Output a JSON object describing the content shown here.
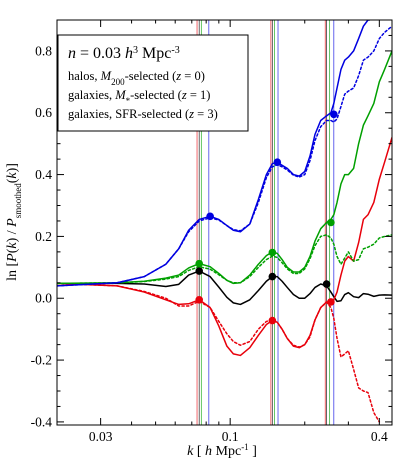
{
  "chart_data": {
    "type": "line",
    "xscale": "log",
    "xlim": [
      0.02,
      0.45
    ],
    "ylim": [
      -0.41,
      0.9
    ],
    "grid": false,
    "legend_position": "top-left",
    "xlabel": {
      "pre": "k",
      "mid": "[ h Mpc",
      "sup": "-1",
      "post": "]"
    },
    "ylabel": {
      "pre": "ln [P(k) / P",
      "sub": "smoothed",
      "post": "(k)]"
    },
    "x_ticks": [
      {
        "value": 0.03,
        "label": "0.03"
      },
      {
        "value": 0.1,
        "label": "0.1"
      },
      {
        "value": 0.4,
        "label": "0.4"
      }
    ],
    "y_ticks": [
      {
        "value": -0.4,
        "label": "-0.4"
      },
      {
        "value": -0.2,
        "label": "-0.2"
      },
      {
        "value": 0.0,
        "label": "0.0"
      },
      {
        "value": 0.2,
        "label": "0.2"
      },
      {
        "value": 0.4,
        "label": "0.4"
      },
      {
        "value": 0.6,
        "label": "0.6"
      },
      {
        "value": 0.8,
        "label": "0.8"
      }
    ],
    "legend": {
      "number_density": {
        "pre": "n = 0.03 ",
        "h": "h",
        "h_sup": "3",
        "mid": " Mpc",
        "mpc_sup": "-3"
      },
      "entries": [
        {
          "pre": "halos, ",
          "sym": "M",
          "sub": "200",
          "post": "-selected (",
          "z": "z",
          "zval": " = 0)"
        },
        {
          "pre": "galaxies, ",
          "sym": "M",
          "sub": "*",
          "post": "-selected (",
          "z": "z",
          "zval": " = 1)"
        },
        {
          "pre": "galaxies, SFR-selected (",
          "sym": "",
          "sub": "",
          "post": "",
          "z": "z",
          "zval": " = 3)"
        }
      ]
    },
    "colors": {
      "black": "#000000",
      "red": "#e8000b",
      "green": "#00a000",
      "blue": "#0000e0"
    },
    "series": [
      {
        "color": "black",
        "dash": "solid",
        "x": [
          0.02,
          0.035,
          0.045,
          0.055,
          0.062,
          0.068,
          0.075,
          0.083,
          0.09,
          0.097,
          0.103,
          0.11,
          0.12,
          0.13,
          0.14,
          0.148,
          0.155,
          0.162,
          0.17,
          0.18,
          0.19,
          0.2,
          0.21,
          0.22,
          0.232,
          0.245,
          0.255,
          0.262,
          0.27,
          0.28,
          0.29,
          0.3,
          0.315,
          0.33,
          0.345,
          0.36,
          0.38,
          0.4,
          0.42,
          0.45
        ],
        "y": [
          0.048,
          0.048,
          0.046,
          0.038,
          0.045,
          0.075,
          0.088,
          0.07,
          0.036,
          0.003,
          -0.015,
          -0.02,
          -0.005,
          0.025,
          0.055,
          0.07,
          0.07,
          0.055,
          0.035,
          0.012,
          0.0,
          0.0,
          0.015,
          0.035,
          0.046,
          0.04,
          0.02,
          0.005,
          -0.01,
          -0.008,
          0.012,
          0.018,
          0.005,
          0.002,
          0.015,
          0.013,
          0.006,
          0.01,
          0.011,
          0.01
        ]
      },
      {
        "color": "red",
        "dash": "solid",
        "x": [
          0.02,
          0.035,
          0.045,
          0.055,
          0.062,
          0.068,
          0.075,
          0.083,
          0.09,
          0.097,
          0.103,
          0.11,
          0.12,
          0.13,
          0.14,
          0.148,
          0.155,
          0.162,
          0.17,
          0.18,
          0.19,
          0.2,
          0.21,
          0.22,
          0.232,
          0.245,
          0.255,
          0.262,
          0.27,
          0.28,
          0.29,
          0.3,
          0.315,
          0.33,
          0.345,
          0.36,
          0.38,
          0.4,
          0.42,
          0.45
        ],
        "y": [
          0.048,
          0.04,
          0.02,
          -0.005,
          -0.02,
          -0.018,
          -0.005,
          -0.03,
          -0.09,
          -0.155,
          -0.18,
          -0.185,
          -0.16,
          -0.12,
          -0.085,
          -0.072,
          -0.078,
          -0.1,
          -0.13,
          -0.155,
          -0.16,
          -0.15,
          -0.12,
          -0.07,
          -0.03,
          -0.012,
          -0.01,
          -0.005,
          0.02,
          0.075,
          0.12,
          0.135,
          0.12,
          0.18,
          0.255,
          0.27,
          0.31,
          0.385,
          0.44,
          0.52
        ]
      },
      {
        "color": "red",
        "dash": "dotted",
        "x": [
          0.02,
          0.035,
          0.045,
          0.055,
          0.062,
          0.068,
          0.075,
          0.083,
          0.09,
          0.097,
          0.103,
          0.11,
          0.12,
          0.13,
          0.14,
          0.148,
          0.155,
          0.162,
          0.17,
          0.18,
          0.19,
          0.2,
          0.21,
          0.22,
          0.232,
          0.245,
          0.255,
          0.262,
          0.27,
          0.28,
          0.29,
          0.3,
          0.315,
          0.33,
          0.345,
          0.36,
          0.38,
          0.4
        ],
        "y": [
          0.048,
          0.04,
          0.022,
          0.0,
          -0.025,
          -0.025,
          -0.01,
          -0.03,
          -0.075,
          -0.115,
          -0.14,
          -0.152,
          -0.14,
          -0.1,
          -0.075,
          -0.07,
          -0.078,
          -0.1,
          -0.13,
          -0.152,
          -0.158,
          -0.15,
          -0.125,
          -0.07,
          -0.03,
          -0.013,
          -0.03,
          -0.065,
          -0.13,
          -0.19,
          -0.18,
          -0.17,
          -0.23,
          -0.29,
          -0.3,
          -0.305,
          -0.37,
          -0.4
        ]
      },
      {
        "color": "green",
        "dash": "solid",
        "x": [
          0.02,
          0.035,
          0.045,
          0.055,
          0.062,
          0.068,
          0.075,
          0.083,
          0.09,
          0.097,
          0.103,
          0.11,
          0.12,
          0.13,
          0.14,
          0.148,
          0.155,
          0.162,
          0.17,
          0.18,
          0.19,
          0.2,
          0.21,
          0.22,
          0.232,
          0.245,
          0.255,
          0.262,
          0.27,
          0.28,
          0.29,
          0.3,
          0.315,
          0.33,
          0.345,
          0.36,
          0.38,
          0.4,
          0.42,
          0.45
        ],
        "y": [
          0.048,
          0.05,
          0.055,
          0.065,
          0.075,
          0.098,
          0.112,
          0.102,
          0.08,
          0.058,
          0.048,
          0.05,
          0.075,
          0.11,
          0.138,
          0.15,
          0.145,
          0.125,
          0.1,
          0.085,
          0.085,
          0.1,
          0.135,
          0.185,
          0.225,
          0.245,
          0.255,
          0.27,
          0.31,
          0.37,
          0.4,
          0.4,
          0.42,
          0.5,
          0.56,
          0.59,
          0.63,
          0.7,
          0.74,
          0.8
        ]
      },
      {
        "color": "green",
        "dash": "dotted",
        "x": [
          0.02,
          0.035,
          0.045,
          0.055,
          0.062,
          0.068,
          0.075,
          0.083,
          0.09,
          0.097,
          0.103,
          0.11,
          0.12,
          0.13,
          0.14,
          0.148,
          0.155,
          0.162,
          0.17,
          0.18,
          0.19,
          0.2,
          0.21,
          0.22,
          0.232,
          0.245,
          0.255,
          0.262,
          0.27,
          0.28,
          0.29,
          0.3,
          0.315,
          0.33,
          0.345,
          0.36,
          0.38,
          0.4,
          0.42,
          0.45
        ],
        "y": [
          0.048,
          0.05,
          0.054,
          0.062,
          0.07,
          0.09,
          0.102,
          0.094,
          0.076,
          0.058,
          0.05,
          0.05,
          0.07,
          0.1,
          0.125,
          0.136,
          0.132,
          0.115,
          0.095,
          0.08,
          0.08,
          0.095,
          0.128,
          0.17,
          0.2,
          0.205,
          0.195,
          0.175,
          0.135,
          0.11,
          0.13,
          0.15,
          0.12,
          0.125,
          0.16,
          0.165,
          0.175,
          0.195,
          0.2,
          0.205
        ]
      },
      {
        "color": "blue",
        "dash": "solid",
        "x": [
          0.02,
          0.035,
          0.045,
          0.055,
          0.062,
          0.068,
          0.075,
          0.083,
          0.09,
          0.097,
          0.103,
          0.11,
          0.12,
          0.13,
          0.14,
          0.148,
          0.155,
          0.162,
          0.17,
          0.18,
          0.19,
          0.2,
          0.21,
          0.22,
          0.232,
          0.245,
          0.255,
          0.262,
          0.27,
          0.28,
          0.29,
          0.3,
          0.315,
          0.33,
          0.345,
          0.36,
          0.365
        ],
        "y": [
          0.04,
          0.05,
          0.07,
          0.11,
          0.16,
          0.22,
          0.255,
          0.265,
          0.255,
          0.235,
          0.22,
          0.215,
          0.24,
          0.32,
          0.4,
          0.435,
          0.44,
          0.43,
          0.42,
          0.4,
          0.395,
          0.41,
          0.46,
          0.53,
          0.575,
          0.59,
          0.6,
          0.63,
          0.68,
          0.74,
          0.77,
          0.78,
          0.8,
          0.84,
          0.88,
          0.9,
          0.9
        ]
      },
      {
        "color": "blue",
        "dash": "dotted",
        "x": [
          0.02,
          0.035,
          0.045,
          0.055,
          0.062,
          0.068,
          0.075,
          0.083,
          0.09,
          0.097,
          0.103,
          0.11,
          0.12,
          0.13,
          0.14,
          0.148,
          0.155,
          0.162,
          0.17,
          0.18,
          0.19,
          0.2,
          0.21,
          0.22,
          0.232,
          0.245,
          0.255,
          0.262,
          0.27,
          0.28,
          0.29,
          0.3,
          0.315,
          0.33,
          0.345,
          0.36,
          0.38,
          0.4,
          0.42,
          0.45
        ],
        "y": [
          0.04,
          0.05,
          0.07,
          0.11,
          0.16,
          0.215,
          0.25,
          0.26,
          0.253,
          0.235,
          0.222,
          0.218,
          0.24,
          0.31,
          0.39,
          0.425,
          0.432,
          0.425,
          0.415,
          0.398,
          0.392,
          0.4,
          0.445,
          0.51,
          0.555,
          0.575,
          0.575,
          0.57,
          0.58,
          0.62,
          0.66,
          0.67,
          0.68,
          0.72,
          0.77,
          0.78,
          0.8,
          0.84,
          0.86,
          0.88
        ]
      }
    ],
    "markers": [
      {
        "color": "black",
        "x": 0.075,
        "y": 0.088
      },
      {
        "color": "black",
        "x": 0.148,
        "y": 0.07
      },
      {
        "color": "black",
        "x": 0.245,
        "y": 0.046
      },
      {
        "color": "red",
        "x": 0.075,
        "y": -0.005
      },
      {
        "color": "red",
        "x": 0.148,
        "y": -0.072
      },
      {
        "color": "red",
        "x": 0.255,
        "y": -0.012
      },
      {
        "color": "green",
        "x": 0.075,
        "y": 0.112
      },
      {
        "color": "green",
        "x": 0.148,
        "y": 0.148
      },
      {
        "color": "green",
        "x": 0.255,
        "y": 0.245
      },
      {
        "color": "blue",
        "x": 0.083,
        "y": 0.265
      },
      {
        "color": "blue",
        "x": 0.155,
        "y": 0.44
      },
      {
        "color": "blue",
        "x": 0.262,
        "y": 0.595
      }
    ],
    "vertical_lines": [
      {
        "color": "black",
        "x": 0.075
      },
      {
        "color": "red",
        "x": 0.0735
      },
      {
        "color": "green",
        "x": 0.0765
      },
      {
        "color": "blue",
        "x": 0.082
      },
      {
        "color": "black",
        "x": 0.148
      },
      {
        "color": "red",
        "x": 0.146
      },
      {
        "color": "green",
        "x": 0.151
      },
      {
        "color": "blue",
        "x": 0.156
      },
      {
        "color": "black",
        "x": 0.245
      },
      {
        "color": "red",
        "x": 0.242
      },
      {
        "color": "green",
        "x": 0.252
      },
      {
        "color": "blue",
        "x": 0.262
      }
    ]
  }
}
